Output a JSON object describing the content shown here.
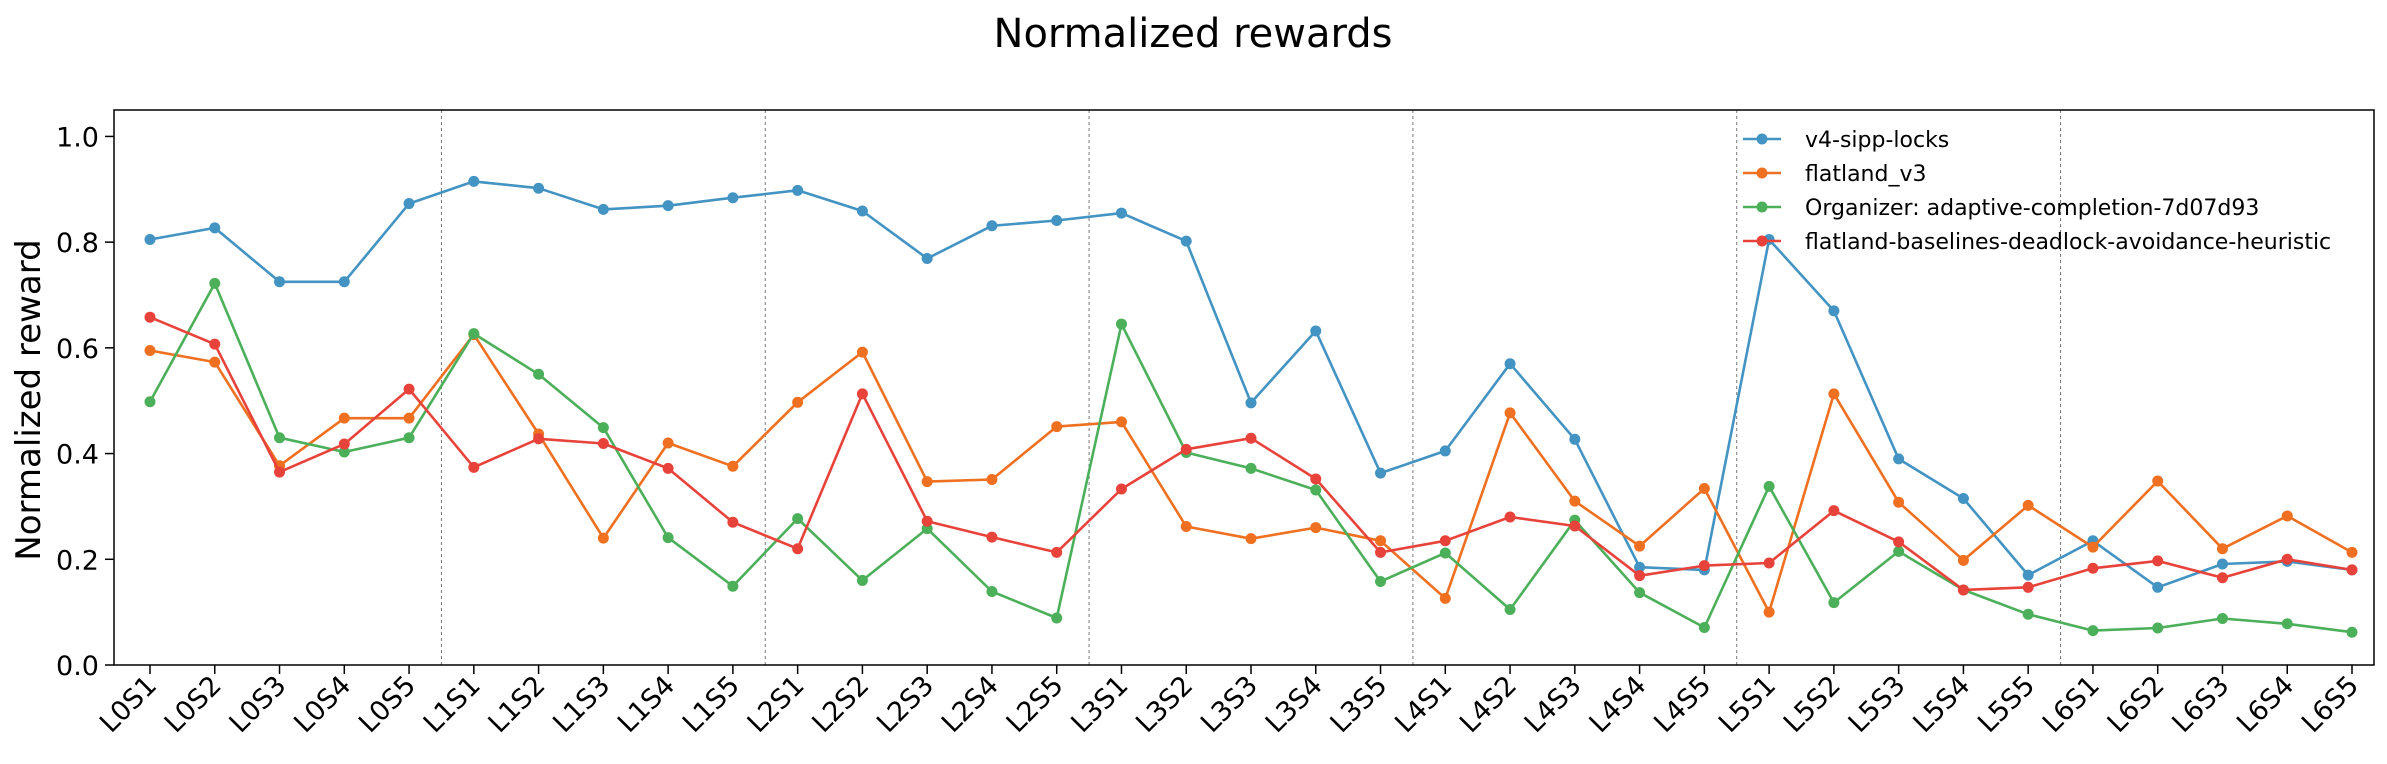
{
  "chart_data": {
    "type": "line",
    "title": "Normalized rewards",
    "xlabel": "",
    "ylabel": "Normalized reward",
    "ylim": [
      0.0,
      1.05
    ],
    "yticks": [
      "0.0",
      "0.2",
      "0.4",
      "0.6",
      "0.8",
      "1.0"
    ],
    "grid": false,
    "legend_position": "top-right",
    "group_separators_after": [
      "L0S5",
      "L1S5",
      "L2S5",
      "L3S5",
      "L4S5",
      "L5S5"
    ],
    "categories": [
      "L0S1",
      "L0S2",
      "L0S3",
      "L0S4",
      "L0S5",
      "L1S1",
      "L1S2",
      "L1S3",
      "L1S4",
      "L1S5",
      "L2S1",
      "L2S2",
      "L2S3",
      "L2S4",
      "L2S5",
      "L3S1",
      "L3S2",
      "L3S3",
      "L3S4",
      "L3S5",
      "L4S1",
      "L4S2",
      "L4S3",
      "L4S4",
      "L4S5",
      "L5S1",
      "L5S2",
      "L5S3",
      "L5S4",
      "L5S5",
      "L6S1",
      "L6S2",
      "L6S3",
      "L6S4",
      "L6S5"
    ],
    "series": [
      {
        "name": "v4-sipp-locks",
        "color": "#4393c3",
        "values": [
          0.805,
          0.827,
          0.725,
          0.725,
          0.873,
          0.915,
          0.902,
          0.862,
          0.869,
          0.884,
          0.898,
          0.859,
          0.769,
          0.831,
          0.841,
          0.855,
          0.802,
          0.496,
          0.632,
          0.363,
          0.405,
          0.57,
          0.427,
          0.185,
          0.18,
          0.805,
          0.67,
          0.39,
          0.315,
          0.17,
          0.235,
          0.147,
          0.191,
          0.196,
          0.18
        ]
      },
      {
        "name": "flatland_v3",
        "color": "#ee7020",
        "values": [
          0.595,
          0.573,
          0.377,
          0.467,
          0.467,
          0.625,
          0.437,
          0.24,
          0.42,
          0.376,
          0.497,
          0.592,
          0.347,
          0.351,
          0.451,
          0.46,
          0.262,
          0.239,
          0.26,
          0.235,
          0.126,
          0.477,
          0.31,
          0.225,
          0.334,
          0.1,
          0.513,
          0.308,
          0.198,
          0.302,
          0.223,
          0.348,
          0.22,
          0.282,
          0.213
        ]
      },
      {
        "name": "Organizer: adaptive-completion-7d07d93",
        "color": "#4caf5a",
        "values": [
          0.498,
          0.722,
          0.43,
          0.403,
          0.43,
          0.627,
          0.55,
          0.449,
          0.241,
          0.149,
          0.277,
          0.16,
          0.258,
          0.139,
          0.089,
          0.645,
          0.402,
          0.372,
          0.331,
          0.158,
          0.212,
          0.105,
          0.274,
          0.137,
          0.071,
          0.338,
          0.118,
          0.215,
          0.142,
          0.096,
          0.065,
          0.07,
          0.088,
          0.078,
          0.062
        ]
      },
      {
        "name": "flatland-baselines-deadlock-avoidance-heuristic",
        "color": "#e8433a",
        "values": [
          0.658,
          0.607,
          0.365,
          0.418,
          0.522,
          0.374,
          0.428,
          0.419,
          0.372,
          0.27,
          0.22,
          0.513,
          0.272,
          0.242,
          0.213,
          0.333,
          0.408,
          0.429,
          0.352,
          0.213,
          0.235,
          0.28,
          0.263,
          0.169,
          0.188,
          0.193,
          0.292,
          0.233,
          0.142,
          0.147,
          0.183,
          0.197,
          0.165,
          0.2,
          0.18
        ]
      }
    ]
  }
}
